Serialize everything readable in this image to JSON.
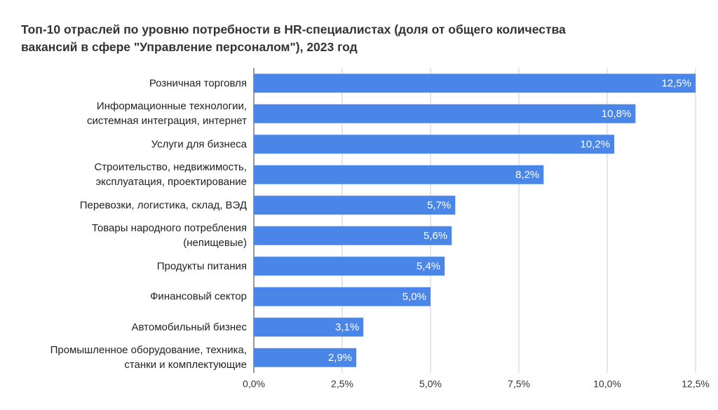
{
  "chart_data": {
    "type": "bar",
    "orientation": "horizontal",
    "title": "Топ-10 отраслей по уровню потребности в HR-специалистах (доля от общего количества\nвакансий в сфере \"Управление персоналом\"), 2023 год",
    "categories": [
      "Розничная торговля",
      "Информационные технологии,\nсистемная интеграция, интернет",
      "Услуги для бизнеса",
      "Строительство, недвижимость,\nэксплуатация, проектирование",
      "Перевозки, логистика, склад, ВЭД",
      "Товары народного потребления\n(непищевые)",
      "Продукты питания",
      "Финансовый сектор",
      "Автомобильный бизнес",
      "Промышленное оборудование, техника,\nстанки и комплектующие"
    ],
    "values": [
      12.5,
      10.8,
      10.2,
      8.2,
      5.7,
      5.6,
      5.4,
      5.0,
      3.1,
      2.9
    ],
    "value_labels": [
      "12,5%",
      "10,8%",
      "10,2%",
      "8,2%",
      "5,7%",
      "5,6%",
      "5,4%",
      "5,0%",
      "3,1%",
      "2,9%"
    ],
    "color": "#4a86e8",
    "xlim": [
      0,
      12.5
    ],
    "xticks": [
      {
        "value": 0,
        "label": "0,0%"
      },
      {
        "value": 2.5,
        "label": "2,5%"
      },
      {
        "value": 5,
        "label": "5,0%"
      },
      {
        "value": 7.5,
        "label": "7,5%"
      },
      {
        "value": 10,
        "label": "10,0%"
      },
      {
        "value": 12.5,
        "label": "12,5%"
      }
    ],
    "grid": true
  }
}
